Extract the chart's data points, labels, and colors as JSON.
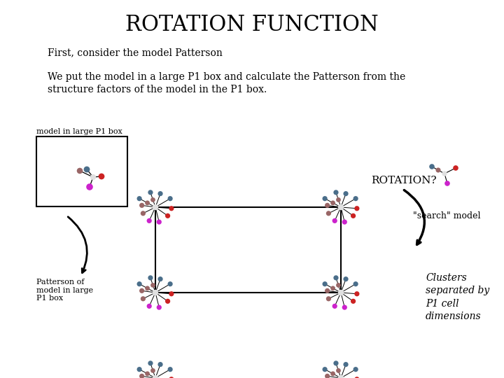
{
  "title": "ROTATION FUNCTION",
  "subtitle1": "First, consider the model Patterson",
  "subtitle2": "We put the model in a large P1 box and calculate the Patterson from the\nstructure factors of the model in the P1 box.",
  "label_model_box": "model in large P1 box",
  "label_patterson": "Patterson of\nmodel in large\nP1 box",
  "label_rotation": "ROTATION?",
  "label_search": "\"search\" model",
  "label_clusters": "Clusters\nseparated by\nP1 cell\ndimensions",
  "bg_color": "#ffffff",
  "colors": {
    "blue": "#4a6e8a",
    "red": "#cc2222",
    "magenta": "#cc22cc",
    "brown": "#996666",
    "center": "#e0e0e0"
  }
}
